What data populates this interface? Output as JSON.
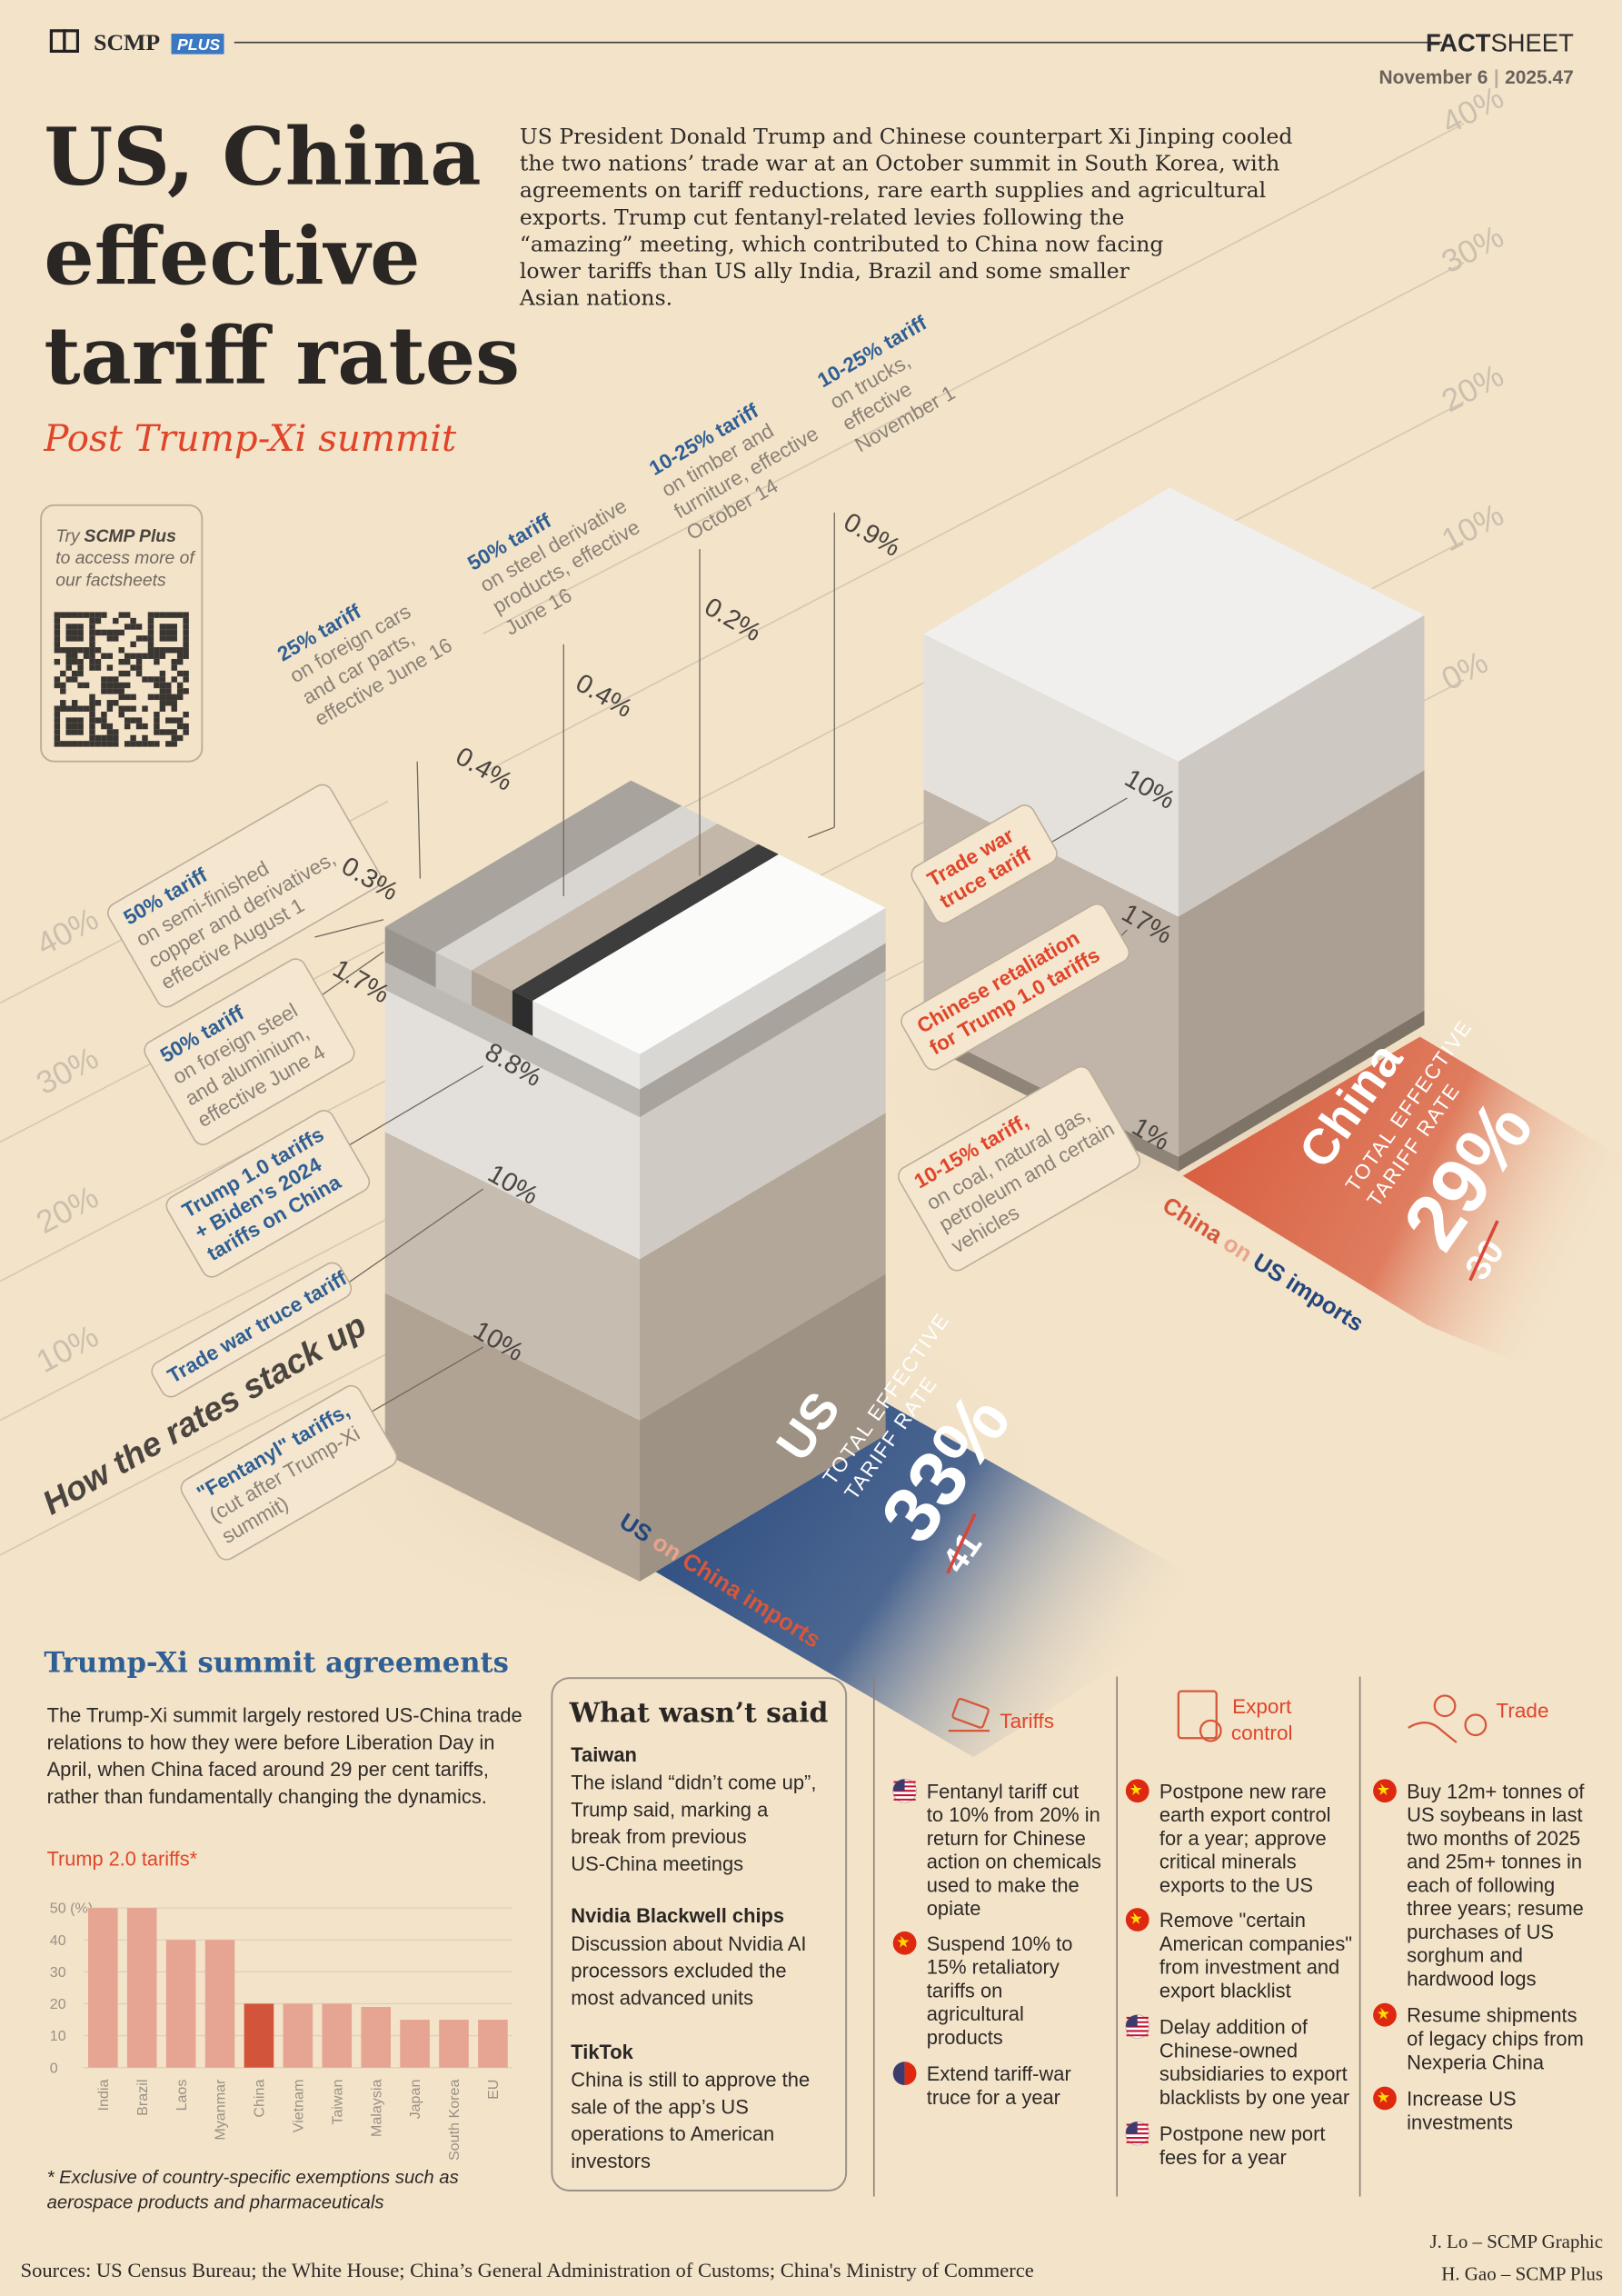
{
  "header": {
    "brand": "SCMP",
    "plus": "PLUS",
    "fact": "FACT",
    "sheet": "SHEET",
    "date": "November 6",
    "issue": "2025.47"
  },
  "title": [
    "US, China",
    "effective",
    "tariff rates"
  ],
  "subtitle": "Post Trump-Xi summit",
  "intro": [
    "US President Donald Trump and Chinese counterpart Xi Jinping cooled",
    "the two nations’ trade war at an October summit in South Korea, with",
    "agreements on tariff reductions, rare earth supplies and agricultural",
    "exports. Trump cut fentanyl-related levies following the",
    "“amazing” meeting, which contributed to China now facing",
    "lower tariffs than US ally India, Brazil and some smaller",
    "Asian nations."
  ],
  "promo": {
    "try": "Try",
    "brand": "SCMP Plus",
    "lines": [
      "to access more of",
      "our factsheets"
    ]
  },
  "stack": {
    "heading": "How the rates stack up",
    "scale_right": [
      "40%",
      "30%",
      "20%",
      "10%",
      "0%"
    ],
    "scale_left": [
      "40%",
      "30%",
      "20%",
      "10%"
    ],
    "us_notes": [
      {
        "title": [
          "25% tariff"
        ],
        "text": [
          "on foreign cars",
          "and car parts,",
          "effective June 16"
        ],
        "rate": "0.4%"
      },
      {
        "title": [
          "50% tariff"
        ],
        "text": [
          "on steel derivative",
          "products, effective",
          "June 16"
        ],
        "rate": "0.4%"
      },
      {
        "title": [
          "10-25% tariff"
        ],
        "text": [
          "on timber and",
          "furniture, effective",
          "October 14"
        ],
        "rate": "0.2%"
      },
      {
        "title": [
          "10-25% tariff"
        ],
        "text": [
          "on trucks,",
          "effective",
          "November 1"
        ],
        "rate": "0.9%"
      },
      {
        "title": [
          "50% tariff"
        ],
        "text": [
          "on semi-finished",
          "copper and derivatives,",
          "effective August 1"
        ],
        "rate": "0.3%"
      },
      {
        "title": [
          "50% tariff"
        ],
        "text": [
          "on foreign steel",
          "and aluminium,",
          "effective June 4"
        ],
        "rate": "1.7%"
      },
      {
        "title": [
          "Trump 1.0 tariffs",
          "+ Biden’s 2024",
          "tariffs on China"
        ],
        "text": [],
        "rate": "8.8%"
      },
      {
        "title": [
          "Trade war truce tariff"
        ],
        "text": [],
        "rate": "10%"
      },
      {
        "title": [
          "\"Fentanyl\" tariffs,"
        ],
        "text": [
          "(cut after Trump-Xi",
          "summit)"
        ],
        "rate": "10%"
      }
    ],
    "china_notes": [
      {
        "title": [
          "Trade war",
          "truce tariff"
        ],
        "text": [],
        "rate": "10%"
      },
      {
        "title": [
          "Chinese retaliation",
          "for Trump 1.0 tariffs"
        ],
        "text": [],
        "rate": "17%"
      },
      {
        "title": [
          "10-15% tariff,"
        ],
        "text": [
          "on coal, natural gas,",
          "petroleum and certain",
          "vehicles"
        ],
        "rate": "1%"
      }
    ],
    "us_total": {
      "country": "US",
      "label": [
        "TOTAL EFFECTIVE",
        "TARIFF RATE"
      ],
      "rate": "33%",
      "previous": "41",
      "caption": [
        "US",
        " on ",
        "China imports"
      ]
    },
    "china_total": {
      "country": "China",
      "label": [
        "TOTAL EFFECTIVE",
        "TARIFF RATE"
      ],
      "rate": "29%",
      "previous": "30",
      "caption": [
        "China",
        " on ",
        "US imports"
      ]
    }
  },
  "agreements": {
    "heading": "Trump-Xi summit agreements",
    "intro": [
      "The Trump-Xi summit largely restored US-China trade",
      "relations to how they were before Liberation Day in",
      "April, when China faced around 29 per cent tariffs,",
      "rather than fundamentally changing the dynamics."
    ]
  },
  "chart_data": {
    "type": "bar",
    "title": "Trump 2.0 tariffs*",
    "categories": [
      "India",
      "Brazil",
      "Laos",
      "Myanmar",
      "China",
      "Vietnam",
      "Taiwan",
      "Malaysia",
      "Japan",
      "South Korea",
      "EU"
    ],
    "values": [
      50,
      50,
      40,
      40,
      20,
      20,
      20,
      19,
      15,
      15,
      15
    ],
    "colors": [
      "#e6a593",
      "#e6a593",
      "#e6a593",
      "#e6a593",
      "#d2543b",
      "#e6a593",
      "#e6a593",
      "#e6a593",
      "#e6a593",
      "#e6a593",
      "#e6a593"
    ],
    "ylim": [
      0,
      50
    ],
    "yticks": [
      0,
      10,
      20,
      30,
      40,
      {
        "value": 50,
        "label": "50 (%)"
      }
    ],
    "grid": true,
    "footnote": [
      "* Exclusive of country-specific exemptions such as",
      "aerospace products and pharmaceuticals"
    ]
  },
  "unsaid": {
    "heading": "What wasn’t said",
    "items": [
      {
        "title": "Taiwan",
        "lines": [
          "The island “didn’t come up”,",
          "Trump said, marking a",
          "break from previous",
          "US-China meetings"
        ]
      },
      {
        "title": "Nvidia Blackwell chips",
        "lines": [
          "Discussion about Nvidia AI",
          "processors excluded the",
          "most advanced units"
        ]
      },
      {
        "title": "TikTok",
        "lines": [
          "China is still to approve the",
          "sale of the app’s US",
          "operations to American",
          "investors"
        ]
      }
    ]
  },
  "columns": [
    {
      "heading": [
        "Tariffs"
      ],
      "items": [
        [
          "Fentanyl tariff cut",
          "to 10% from 20% in",
          "return for Chinese",
          "action on chemicals",
          "used to make the",
          "opiate"
        ],
        [
          "Suspend 10% to",
          "15% retaliatory",
          "tariffs on",
          "agricultural",
          "products"
        ],
        [
          "Extend tariff-war",
          "truce for a year"
        ]
      ]
    },
    {
      "heading": [
        "Export",
        "control"
      ],
      "items": [
        [
          "Postpone new rare",
          "earth export control",
          "for a year; approve",
          "critical minerals",
          "exports to the US"
        ],
        [
          "Remove \"certain",
          "American companies\"",
          "from investment and",
          "export blacklist"
        ],
        [
          "Delay addition of",
          "Chinese-owned",
          "subsidiaries to export",
          "blacklists by one year"
        ],
        [
          "Postpone new port",
          "fees for a year"
        ]
      ]
    },
    {
      "heading": [
        "Trade"
      ],
      "items": [
        [
          "Buy 12m+ tonnes of",
          "US soybeans in last",
          "two months of 2025",
          "and 25m+ tonnes in",
          "each of following",
          "three years; resume",
          "purchases of US",
          "sorghum and",
          "hardwood logs"
        ],
        [
          "Resume shipments",
          "of legacy chips from",
          "Nexperia China"
        ],
        [
          "Increase US",
          "investments"
        ]
      ]
    }
  ],
  "footer": {
    "sources": "Sources: US Census Bureau; the White House; China’s General Administration of Customs; China's Ministry of Commerce",
    "credits": [
      "J. Lo – SCMP Graphic",
      "H. Gao – SCMP Plus"
    ]
  }
}
